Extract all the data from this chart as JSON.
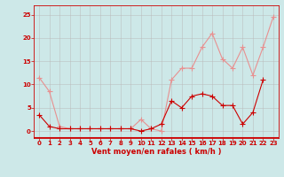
{
  "x": [
    0,
    1,
    2,
    3,
    4,
    5,
    6,
    7,
    8,
    9,
    10,
    11,
    12,
    13,
    14,
    15,
    16,
    17,
    18,
    19,
    20,
    21,
    22,
    23
  ],
  "y_avg": [
    3.5,
    1.0,
    0.5,
    0.5,
    0.5,
    0.5,
    0.5,
    0.5,
    0.5,
    0.5,
    0.0,
    0.5,
    1.5,
    6.5,
    5.0,
    7.5,
    8.0,
    7.5,
    5.5,
    5.5,
    1.5,
    4.0,
    11.0,
    null
  ],
  "y_gust": [
    11.5,
    8.5,
    1.0,
    0.5,
    0.5,
    0.5,
    0.5,
    0.5,
    0.5,
    0.5,
    2.5,
    0.5,
    0.0,
    11.0,
    13.5,
    13.5,
    18.0,
    21.0,
    15.5,
    13.5,
    18.0,
    12.0,
    18.0,
    24.5
  ],
  "color_avg": "#cc0000",
  "color_gust": "#e89090",
  "bg_color": "#cde8e8",
  "grid_color": "#bbbbbb",
  "xlabel": "Vent moyen/en rafales ( km/h )",
  "yticks": [
    0,
    5,
    10,
    15,
    20,
    25
  ],
  "xticks": [
    0,
    1,
    2,
    3,
    4,
    5,
    6,
    7,
    8,
    9,
    10,
    11,
    12,
    13,
    14,
    15,
    16,
    17,
    18,
    19,
    20,
    21,
    22,
    23
  ],
  "ylim": [
    -1.5,
    27
  ],
  "xlim": [
    -0.5,
    23.5
  ],
  "line_width": 0.8,
  "marker_size": 2.5
}
